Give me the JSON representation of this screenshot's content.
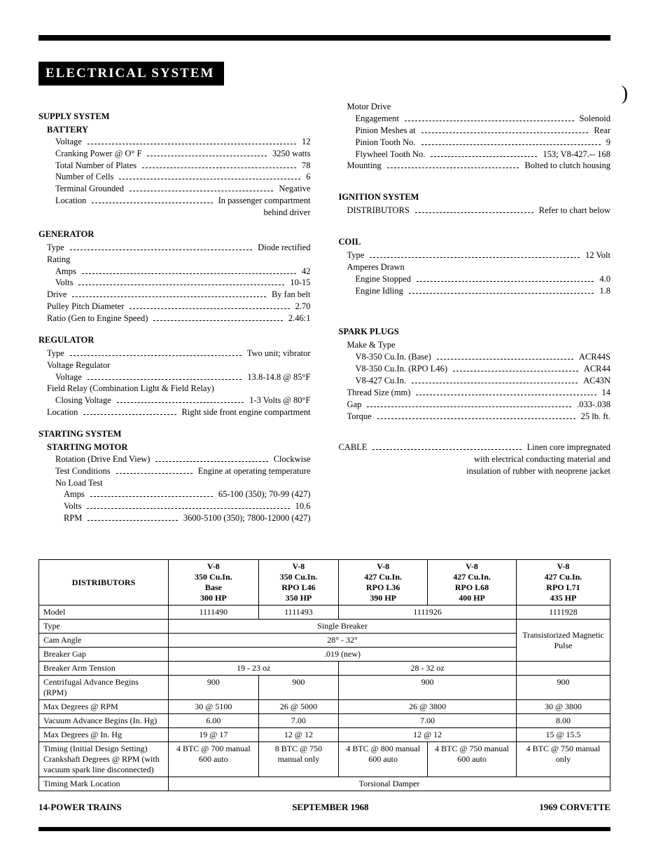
{
  "title": "ELECTRICAL SYSTEM",
  "paren": ")",
  "left_column": [
    {
      "type": "section",
      "text": "SUPPLY SYSTEM"
    },
    {
      "type": "subhead",
      "text": "BATTERY"
    },
    {
      "type": "spec",
      "label": "Voltage",
      "value": "12"
    },
    {
      "type": "spec",
      "label": "Cranking Power @ O° F",
      "value": "3250 watts"
    },
    {
      "type": "spec",
      "label": "Total Number of Plates",
      "value": "78"
    },
    {
      "type": "spec",
      "label": "Number of Cells",
      "value": "6"
    },
    {
      "type": "spec",
      "label": "Terminal Grounded",
      "value": "Negative"
    },
    {
      "type": "spec",
      "label": "Location",
      "value": "In passenger compartment"
    },
    {
      "type": "note_right",
      "text": "behind driver"
    },
    {
      "type": "section",
      "text": "GENERATOR"
    },
    {
      "type": "spec",
      "level": 1,
      "label": "Type",
      "value": "Diode rectified"
    },
    {
      "type": "plain",
      "level": 1,
      "text": "Rating"
    },
    {
      "type": "spec",
      "label": "Amps",
      "value": "42"
    },
    {
      "type": "spec",
      "label": "Volts",
      "value": "10-15"
    },
    {
      "type": "spec",
      "level": 1,
      "label": "Drive",
      "value": "By fan belt"
    },
    {
      "type": "spec",
      "level": 1,
      "label": "Pulley Pitch Diameter",
      "value": "2.70"
    },
    {
      "type": "spec",
      "level": 1,
      "label": "Ratio (Gen to Engine Speed)",
      "value": "2.46:1"
    },
    {
      "type": "section",
      "text": "REGULATOR"
    },
    {
      "type": "spec",
      "level": 1,
      "label": "Type",
      "value": "Two unit; vibrator"
    },
    {
      "type": "plain",
      "level": 1,
      "text": "Voltage Regulator"
    },
    {
      "type": "spec",
      "label": "Voltage",
      "value": "13.8-14.8 @ 85°F"
    },
    {
      "type": "plain",
      "level": 1,
      "text": "Field Relay (Combination Light & Field Relay)"
    },
    {
      "type": "spec",
      "label": "Closing Voltage",
      "value": "1-3 Volts @ 80°F"
    },
    {
      "type": "spec",
      "level": 1,
      "label": "Location",
      "value": "Right side front engine compartment"
    },
    {
      "type": "section",
      "text": "STARTING SYSTEM"
    },
    {
      "type": "subhead",
      "text": "STARTING MOTOR"
    },
    {
      "type": "spec",
      "label": "Rotation (Drive End View)",
      "value": "Clockwise"
    },
    {
      "type": "spec",
      "label": "Test Conditions",
      "value": "Engine at operating temperature"
    },
    {
      "type": "plain",
      "level": 2,
      "text": "No Load Test"
    },
    {
      "type": "spec",
      "level": 3,
      "label": "Amps",
      "value": "65-100 (350); 70-99 (427)"
    },
    {
      "type": "spec",
      "level": 3,
      "label": "Volts",
      "value": "10.6"
    },
    {
      "type": "spec",
      "level": 3,
      "label": "RPM",
      "value": "3600-5100 (350); 7800-12000 (427)"
    }
  ],
  "right_column": [
    {
      "type": "plain",
      "level": 1,
      "text": "Motor Drive"
    },
    {
      "type": "spec",
      "label": "Engagement",
      "value": "Solenoid"
    },
    {
      "type": "spec",
      "label": "Pinion Meshes at",
      "value": "Rear"
    },
    {
      "type": "spec",
      "label": "Pinion Tooth No.",
      "value": "9"
    },
    {
      "type": "spec",
      "label": "Flywheel Tooth No.",
      "value": "153; V8-427.-- 168"
    },
    {
      "type": "spec",
      "level": 1,
      "label": "Mounting",
      "value": "Bolted to clutch housing"
    },
    {
      "type": "gap"
    },
    {
      "type": "section",
      "text": "IGNITION SYSTEM"
    },
    {
      "type": "spec",
      "level": 1,
      "label": "DISTRIBUTORS",
      "value": "Refer to chart below"
    },
    {
      "type": "gap"
    },
    {
      "type": "section",
      "text": "COIL"
    },
    {
      "type": "spec",
      "level": 1,
      "label": "Type",
      "value": "12 Volt"
    },
    {
      "type": "plain",
      "level": 1,
      "text": "Amperes Drawn"
    },
    {
      "type": "spec",
      "label": "Engine Stopped",
      "value": "4.0"
    },
    {
      "type": "spec",
      "label": "Engine Idling",
      "value": "1.8"
    },
    {
      "type": "gap"
    },
    {
      "type": "gap"
    },
    {
      "type": "section",
      "text": "SPARK PLUGS"
    },
    {
      "type": "plain",
      "level": 1,
      "text": "Make & Type"
    },
    {
      "type": "spec",
      "label": "V8-350 Cu.In. (Base)",
      "value": "ACR44S"
    },
    {
      "type": "spec",
      "label": "V8-350 Cu.In. (RPO L46)",
      "value": "ACR44"
    },
    {
      "type": "spec",
      "label": "V8-427 Cu.In.",
      "value": "AC43N"
    },
    {
      "type": "spec",
      "level": 1,
      "label": "Thread Size (mm)",
      "value": "14"
    },
    {
      "type": "spec",
      "level": 1,
      "label": "Gap",
      "value": ".033-.038"
    },
    {
      "type": "spec",
      "level": 1,
      "label": "Torque",
      "value": "25 lb. ft."
    },
    {
      "type": "gap"
    },
    {
      "type": "gap"
    },
    {
      "type": "spec",
      "level": 0,
      "label": "CABLE",
      "value": "Linen core impregnated"
    },
    {
      "type": "note_right",
      "text": "with electrical conducting material and"
    },
    {
      "type": "note_right",
      "text": "insulation of rubber with neoprene jacket"
    }
  ],
  "table": {
    "header_first": "DISTRIBUTORS",
    "columns": [
      [
        "V-8",
        "350 Cu.In.",
        "Base",
        "300 HP"
      ],
      [
        "V-8",
        "350 Cu.In.",
        "RPO L46",
        "350 HP"
      ],
      [
        "V-8",
        "427 Cu.In.",
        "RPO L36",
        "390 HP"
      ],
      [
        "V-8",
        "427 Cu.In.",
        "RPO L68",
        "400 HP"
      ],
      [
        "V-8",
        "427 Cu.In.",
        "RPO L71",
        "435 HP"
      ]
    ],
    "rows": [
      {
        "label": "Model",
        "cells": [
          {
            "span": 1,
            "text": "1111490"
          },
          {
            "span": 1,
            "text": "1111493"
          },
          {
            "span": 2,
            "text": "1111926"
          },
          {
            "span": 1,
            "text": "1111928"
          }
        ]
      },
      {
        "label": "Type",
        "cells": [
          {
            "span": 4,
            "text": "Single Breaker"
          },
          {
            "span": 1,
            "text": "",
            "rowspan_start": true
          }
        ],
        "rowspan_cell": {
          "span": 1,
          "rows": 3,
          "text": "Transistorized Magnetic Pulse"
        }
      },
      {
        "label": "Cam Angle",
        "cells": [
          {
            "span": 4,
            "text": "28° - 32°"
          }
        ]
      },
      {
        "label": "Breaker Gap",
        "cells": [
          {
            "span": 4,
            "text": ".019 (new)"
          }
        ]
      },
      {
        "label": "Breaker Arm Tension",
        "cells": [
          {
            "span": 2,
            "text": "19 - 23 oz"
          },
          {
            "span": 2,
            "text": "28 - 32 oz"
          },
          {
            "span": 1,
            "text": ""
          }
        ]
      },
      {
        "label": "Centrifugal Advance Begins (RPM)",
        "cells": [
          {
            "span": 1,
            "text": "900"
          },
          {
            "span": 1,
            "text": "900"
          },
          {
            "span": 2,
            "text": "900"
          },
          {
            "span": 1,
            "text": "900"
          }
        ]
      },
      {
        "label": "Max Degrees @ RPM",
        "cells": [
          {
            "span": 1,
            "text": "30 @ 5100"
          },
          {
            "span": 1,
            "text": "26 @ 5000"
          },
          {
            "span": 2,
            "text": "26 @ 3800"
          },
          {
            "span": 1,
            "text": "30 @ 3800"
          }
        ]
      },
      {
        "label": "Vacuum Advance Begins (In. Hg)",
        "cells": [
          {
            "span": 1,
            "text": "6.00"
          },
          {
            "span": 1,
            "text": "7.00"
          },
          {
            "span": 2,
            "text": "7.00"
          },
          {
            "span": 1,
            "text": "8.00"
          }
        ]
      },
      {
        "label": "Max Degrees @ In. Hg",
        "cells": [
          {
            "span": 1,
            "text": "19 @ 17"
          },
          {
            "span": 1,
            "text": "12 @ 12"
          },
          {
            "span": 2,
            "text": "12 @ 12"
          },
          {
            "span": 1,
            "text": "15 @ 15.5"
          }
        ]
      },
      {
        "label": "Timing (Initial Design Setting) Crankshaft Degrees @ RPM (with vacuum spark line disconnected)",
        "cells": [
          {
            "span": 1,
            "text": "4 BTC @ 700 manual 600 auto"
          },
          {
            "span": 1,
            "text": "8 BTC @ 750 manual only"
          },
          {
            "span": 1,
            "text": "4 BTC @ 800 manual 600 auto"
          },
          {
            "span": 1,
            "text": "4 BTC @ 750 manual 600 auto"
          },
          {
            "span": 1,
            "text": "4 BTC @ 750 manual only"
          }
        ]
      },
      {
        "label": "Timing Mark Location",
        "cells": [
          {
            "span": 5,
            "text": "Torsional Damper"
          }
        ]
      }
    ]
  },
  "footer": {
    "left": "14-POWER TRAINS",
    "center": "SEPTEMBER 1968",
    "right": "1969 CORVETTE"
  }
}
